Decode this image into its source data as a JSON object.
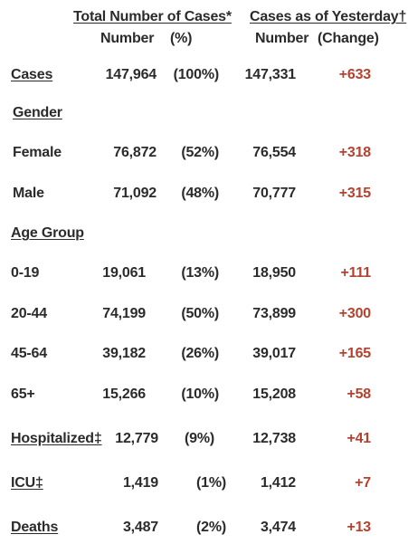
{
  "header": {
    "total_title": "Total Number of Cases*",
    "total_number": "Number",
    "total_pct": "(%)",
    "yesterday_title": "Cases as of Yesterday†",
    "yesterday_number": "Number",
    "yesterday_change": "(Change)"
  },
  "sections": {
    "gender": "Gender",
    "age_group": "Age Group"
  },
  "rows": [
    {
      "label": "Cases",
      "number": "147,964",
      "pct": "(100%)",
      "yesterday": "147,331",
      "change": "+633"
    },
    {
      "label": "Female",
      "number": "76,872",
      "pct": "(52%)",
      "yesterday": "76,554",
      "change": "+318"
    },
    {
      "label": "Male",
      "number": "71,092",
      "pct": "(48%)",
      "yesterday": "70,777",
      "change": "+315"
    },
    {
      "label": "0-19",
      "number": "19,061",
      "pct": "(13%)",
      "yesterday": "18,950",
      "change": "+111"
    },
    {
      "label": "20-44",
      "number": "74,199",
      "pct": "(50%)",
      "yesterday": "73,899",
      "change": "+300"
    },
    {
      "label": "45-64",
      "number": "39,182",
      "pct": "(26%)",
      "yesterday": "39,017",
      "change": "+165"
    },
    {
      "label": "65+",
      "number": "15,266",
      "pct": "(10%)",
      "yesterday": "15,208",
      "change": "+58"
    },
    {
      "label": "Hospitalized‡",
      "number": "12,779",
      "pct": "(9%)",
      "yesterday": "12,738",
      "change": "+41"
    },
    {
      "label": "ICU‡",
      "number": "1,419",
      "pct": "(1%)",
      "yesterday": "1,412",
      "change": "+7"
    },
    {
      "label": "Deaths",
      "number": "3,487",
      "pct": "(2%)",
      "yesterday": "3,474",
      "change": "+13"
    }
  ],
  "colors": {
    "text": "#2b2b2b",
    "change": "#b5412e"
  }
}
